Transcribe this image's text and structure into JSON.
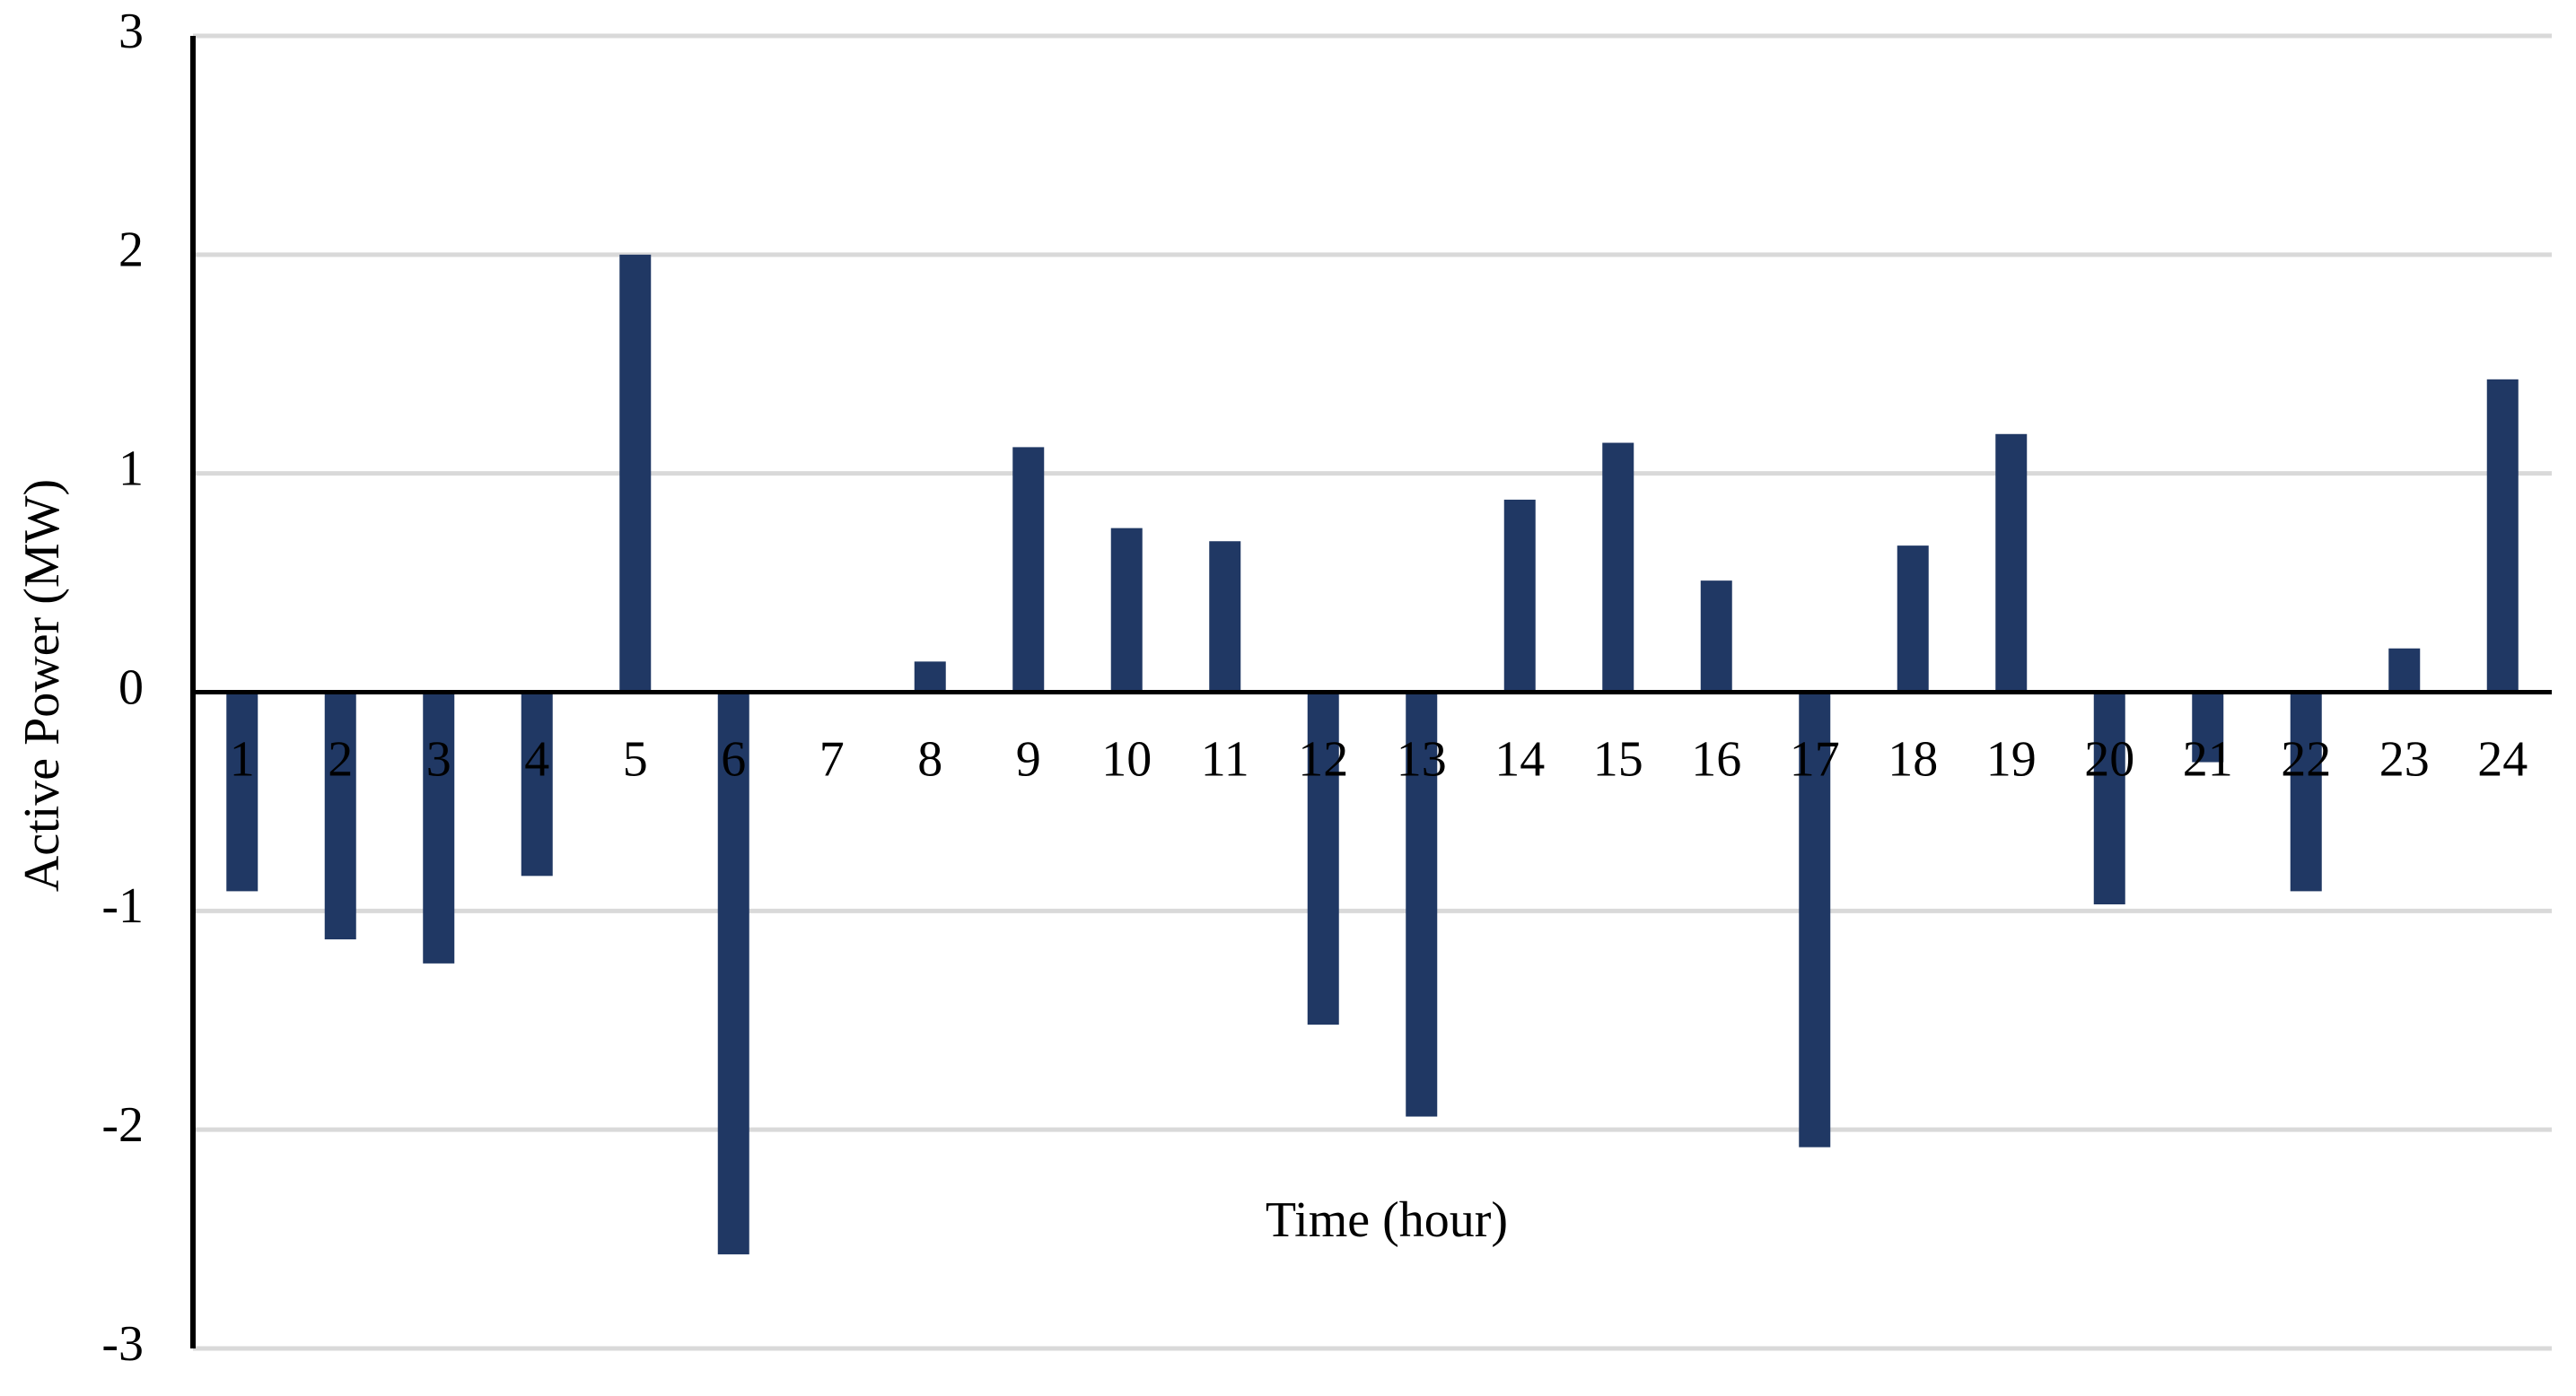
{
  "chart_data": {
    "type": "bar",
    "x_label": "Time (hour)",
    "y_label": "Active Power (MW)",
    "categories": [
      "1",
      "2",
      "3",
      "4",
      "5",
      "6",
      "7",
      "8",
      "9",
      "10",
      "11",
      "12",
      "13",
      "14",
      "15",
      "16",
      "17",
      "18",
      "19",
      "20",
      "21",
      "22",
      "23",
      "24"
    ],
    "values": [
      -0.91,
      -1.13,
      -1.24,
      -0.84,
      2.0,
      -2.57,
      0.01,
      0.14,
      1.12,
      0.75,
      0.69,
      -1.52,
      -1.94,
      0.88,
      1.14,
      0.51,
      -2.08,
      0.67,
      1.18,
      -0.97,
      -0.32,
      -0.91,
      0.2,
      1.43
    ],
    "color": "#203864",
    "ylim": [
      -3,
      3
    ],
    "yticks": [
      -3,
      -2,
      -1,
      0,
      1,
      2,
      3
    ],
    "grid": true
  }
}
